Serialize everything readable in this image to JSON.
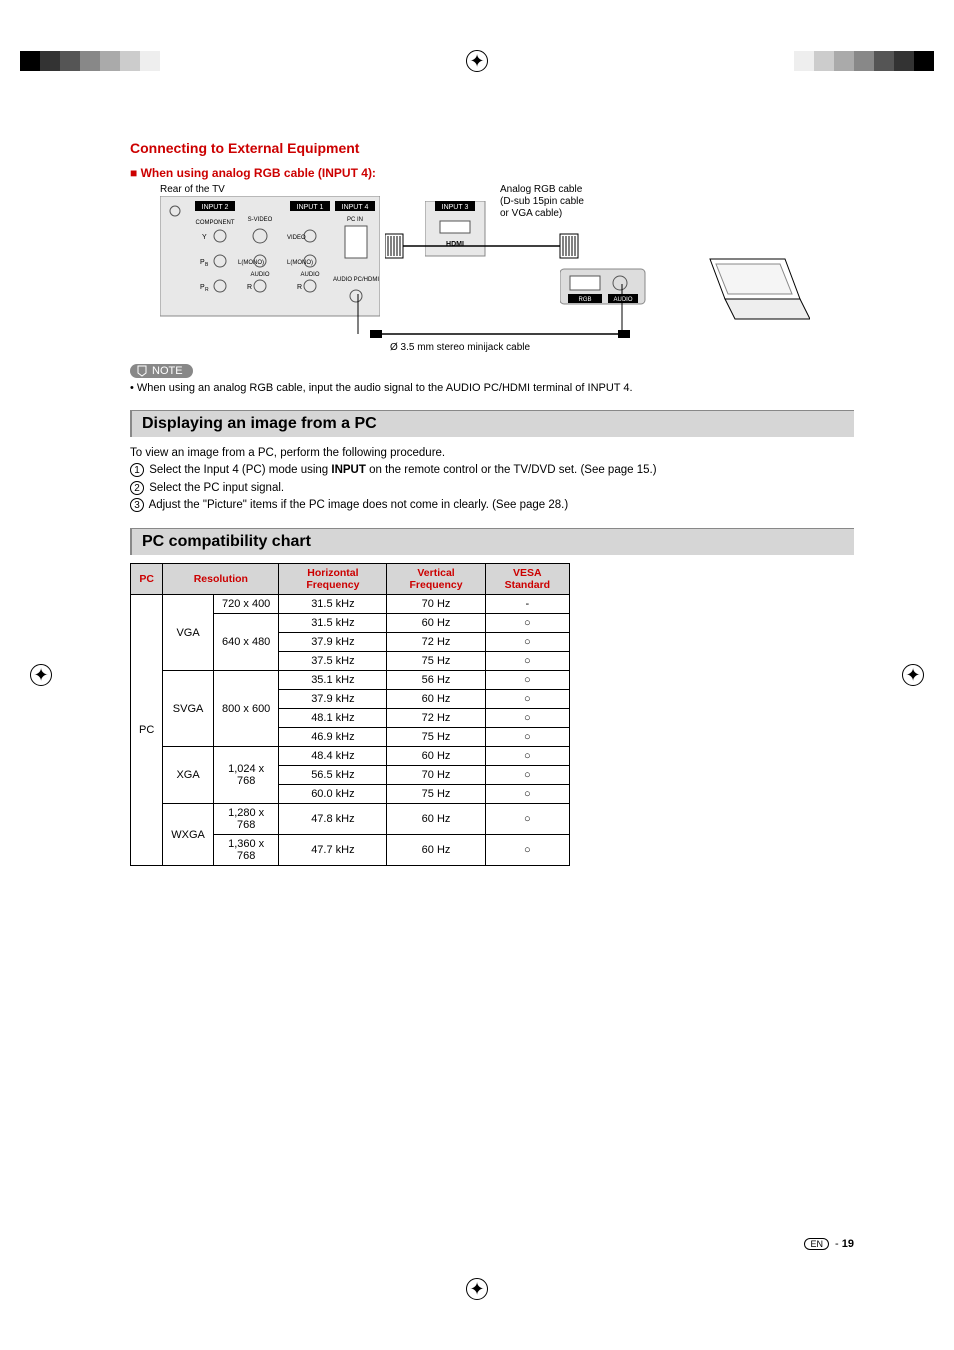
{
  "section_title": "Connecting to External Equipment",
  "rgb_heading": "■ When using analog RGB cable (INPUT 4):",
  "diagram": {
    "rear_label": "Rear of the TV",
    "cable_label": "Analog RGB cable\n(D-sub 15pin cable\nor VGA cable)",
    "minijack_label": "Ø 3.5 mm stereo minijack cable",
    "input1": "INPUT 1",
    "input2": "INPUT 2",
    "input3": "INPUT 3",
    "input4": "INPUT 4",
    "svideo": "S-VIDEO",
    "component": "COMPONENT",
    "pcin": "PC IN",
    "audio": "AUDIO",
    "audio_pchdmi": "AUDIO\nPC/HDMI",
    "rgb": "RGB",
    "audio_jack": "AUDIO",
    "video": "VIDEO",
    "lmono": "L(MONO)"
  },
  "note_label": "NOTE",
  "note_text": "•  When using an analog RGB cable, input the audio signal to the AUDIO PC/HDMI terminal of INPUT 4.",
  "display_heading": "Displaying an image from a PC",
  "display_intro": "To view an image from a PC, perform the following procedure.",
  "steps": {
    "s1a": "Select the Input 4 (PC) mode using ",
    "s1b": "INPUT",
    "s1c": " on the remote control or the TV/DVD set. (See page 15.)",
    "s2": "Select the PC input signal.",
    "s3": "Adjust the \"Picture\" items if the PC image does not come in clearly.  (See page 28.)"
  },
  "compat_heading": "PC compatibility chart",
  "table": {
    "headers": {
      "pc": "PC",
      "resolution": "Resolution",
      "hfreq": "Horizontal Frequency",
      "vfreq": "Vertical Frequency",
      "vesa": "VESA Standard"
    },
    "pc_label": "PC",
    "groups": [
      {
        "name": "VGA",
        "modes": [
          {
            "res": "720 x 400",
            "rows": [
              {
                "h": "31.5 kHz",
                "v": "70 Hz",
                "vesa": "-"
              }
            ]
          },
          {
            "res": "640 x 480",
            "rows": [
              {
                "h": "31.5 kHz",
                "v": "60 Hz",
                "vesa": "○"
              },
              {
                "h": "37.9 kHz",
                "v": "72 Hz",
                "vesa": "○"
              },
              {
                "h": "37.5 kHz",
                "v": "75 Hz",
                "vesa": "○"
              }
            ]
          }
        ]
      },
      {
        "name": "SVGA",
        "modes": [
          {
            "res": "800 x 600",
            "rows": [
              {
                "h": "35.1 kHz",
                "v": "56 Hz",
                "vesa": "○"
              },
              {
                "h": "37.9 kHz",
                "v": "60 Hz",
                "vesa": "○"
              },
              {
                "h": "48.1 kHz",
                "v": "72 Hz",
                "vesa": "○"
              },
              {
                "h": "46.9 kHz",
                "v": "75 Hz",
                "vesa": "○"
              }
            ]
          }
        ]
      },
      {
        "name": "XGA",
        "modes": [
          {
            "res": "1,024 x 768",
            "rows": [
              {
                "h": "48.4 kHz",
                "v": "60 Hz",
                "vesa": "○"
              },
              {
                "h": "56.5 kHz",
                "v": "70 Hz",
                "vesa": "○"
              },
              {
                "h": "60.0 kHz",
                "v": "75 Hz",
                "vesa": "○"
              }
            ]
          }
        ]
      },
      {
        "name": "WXGA",
        "modes": [
          {
            "res": "1,280 x 768",
            "rows": [
              {
                "h": "47.8 kHz",
                "v": "60 Hz",
                "vesa": "○"
              }
            ]
          },
          {
            "res": "1,360 x 768",
            "rows": [
              {
                "h": "47.7 kHz",
                "v": "60 Hz",
                "vesa": "○"
              }
            ]
          }
        ]
      }
    ]
  },
  "page_lang": "EN",
  "page_sep": " - ",
  "page_number": "19",
  "colors": {
    "accent": "#cc0000",
    "gray_bg": "#d6d6d6"
  },
  "color_bar": [
    "#000000",
    "#333333",
    "#555555",
    "#888888",
    "#aaaaaa",
    "#cccccc",
    "#eeeeee",
    "#ffffff"
  ]
}
